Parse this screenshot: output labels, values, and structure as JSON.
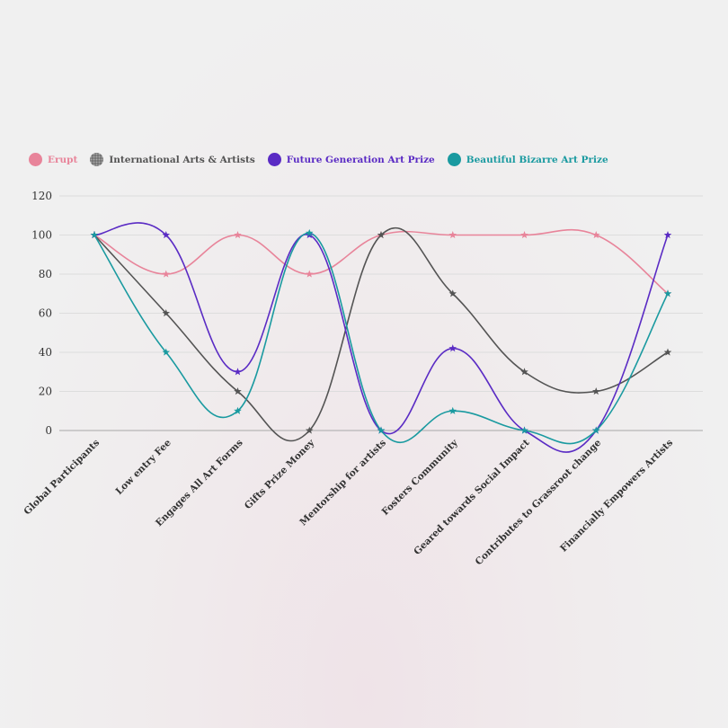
{
  "chart_data": {
    "type": "line",
    "categories": [
      "Global Participants",
      "Low entry Fee",
      "Engages All Art Forms",
      "Gifts Prize Money",
      "Mentorship for artists",
      "Fosters Community",
      "Geared towards Social Impact",
      "Contributes to Grassroot change",
      "Financially Empowers Artists"
    ],
    "series": [
      {
        "name": "Erupt",
        "color": "#e8849a",
        "values": [
          100,
          80,
          100,
          80,
          100,
          100,
          100,
          100,
          70
        ]
      },
      {
        "name": "International Arts & Artists",
        "color": "#545454",
        "values": [
          100,
          60,
          20,
          0,
          100,
          70,
          30,
          20,
          40
        ]
      },
      {
        "name": "Future Generation Art Prize",
        "color": "#5a2bc4",
        "values": [
          100,
          100,
          30,
          100,
          0,
          42,
          0,
          0,
          100
        ]
      },
      {
        "name": "Beautiful Bizarre Art Prize",
        "color": "#1a9aa0",
        "values": [
          100,
          40,
          10,
          101,
          0,
          10,
          0,
          0,
          70
        ]
      }
    ],
    "yticks": [
      0,
      20,
      40,
      60,
      80,
      100,
      120
    ],
    "ylim": [
      0,
      120
    ],
    "grid": true,
    "smooth": true,
    "marker": "star",
    "legend_position": "top-left"
  }
}
